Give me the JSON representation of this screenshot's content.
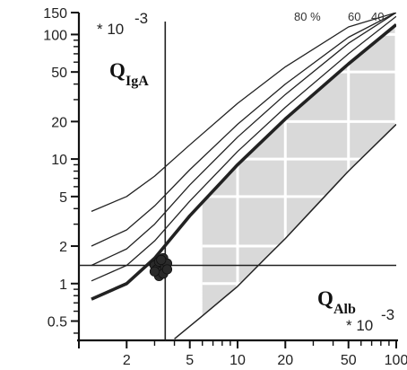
{
  "chart_data": {
    "type": "line",
    "x_scale": "log",
    "y_scale": "log",
    "xlim": [
      1,
      100
    ],
    "ylim": [
      0.35,
      150
    ],
    "x_ticks": [
      2,
      5,
      10,
      20,
      50,
      100
    ],
    "y_ticks": [
      0.5,
      1,
      2,
      5,
      10,
      20,
      50,
      100,
      150
    ],
    "x_tick_labels": [
      "2",
      "5",
      "10",
      "20",
      "50",
      "100"
    ],
    "y_tick_labels": [
      "0.5",
      "1",
      "2",
      "5",
      "10",
      "20",
      "50",
      "100",
      "150"
    ],
    "xlabel": "Q",
    "xlabel_sub": "Alb",
    "ylabel": "Q",
    "ylabel_sub": "IgA",
    "x_scale_note": "* 10",
    "x_scale_exp": "-3",
    "y_scale_note": "* 10",
    "y_scale_exp": "-3",
    "grid": false,
    "series": [
      {
        "name": "80 %",
        "x": [
          1.2,
          2,
          3,
          5,
          10,
          20,
          50,
          100
        ],
        "y": [
          3.8,
          5.0,
          7.3,
          13,
          28,
          55,
          115,
          150
        ]
      },
      {
        "name": "",
        "x": [
          1.2,
          2,
          3,
          5,
          10,
          20,
          50,
          100
        ],
        "y": [
          2.0,
          2.7,
          4.2,
          8.2,
          19,
          40,
          95,
          150
        ]
      },
      {
        "name": "60",
        "x": [
          1.2,
          2,
          3,
          5,
          10,
          20,
          50,
          100
        ],
        "y": [
          1.4,
          1.9,
          3.0,
          6.2,
          15,
          33,
          85,
          150
        ]
      },
      {
        "name": "40",
        "x": [
          1.2,
          2,
          3,
          5,
          10,
          20,
          50,
          100
        ],
        "y": [
          1.05,
          1.4,
          2.2,
          4.6,
          11.5,
          26,
          70,
          140
        ]
      },
      {
        "name": "",
        "x": [
          1.2,
          2,
          3,
          5,
          10,
          20,
          50,
          100
        ],
        "y": [
          0.75,
          1.0,
          1.6,
          3.5,
          9,
          21,
          58,
          120
        ]
      },
      {
        "name": "",
        "x": [
          4,
          6,
          10,
          15,
          20,
          30,
          50,
          100
        ],
        "y": [
          0.36,
          0.55,
          0.95,
          1.6,
          2.3,
          4.0,
          8.0,
          19
        ]
      }
    ],
    "reference_lines": {
      "vertical_x": 3.5,
      "horizontal_y": 1.4
    },
    "shaded_region": {
      "x_from": 6,
      "x_to": 100
    },
    "points": {
      "x": [
        3.0,
        3.1,
        3.2,
        3.3,
        3.4,
        3.5,
        3.6,
        3.2,
        3.4,
        3.0,
        3.6,
        3.3
      ],
      "y": [
        1.4,
        1.3,
        1.5,
        1.25,
        1.6,
        1.35,
        1.45,
        1.15,
        1.2,
        1.25,
        1.3,
        1.55
      ]
    }
  }
}
